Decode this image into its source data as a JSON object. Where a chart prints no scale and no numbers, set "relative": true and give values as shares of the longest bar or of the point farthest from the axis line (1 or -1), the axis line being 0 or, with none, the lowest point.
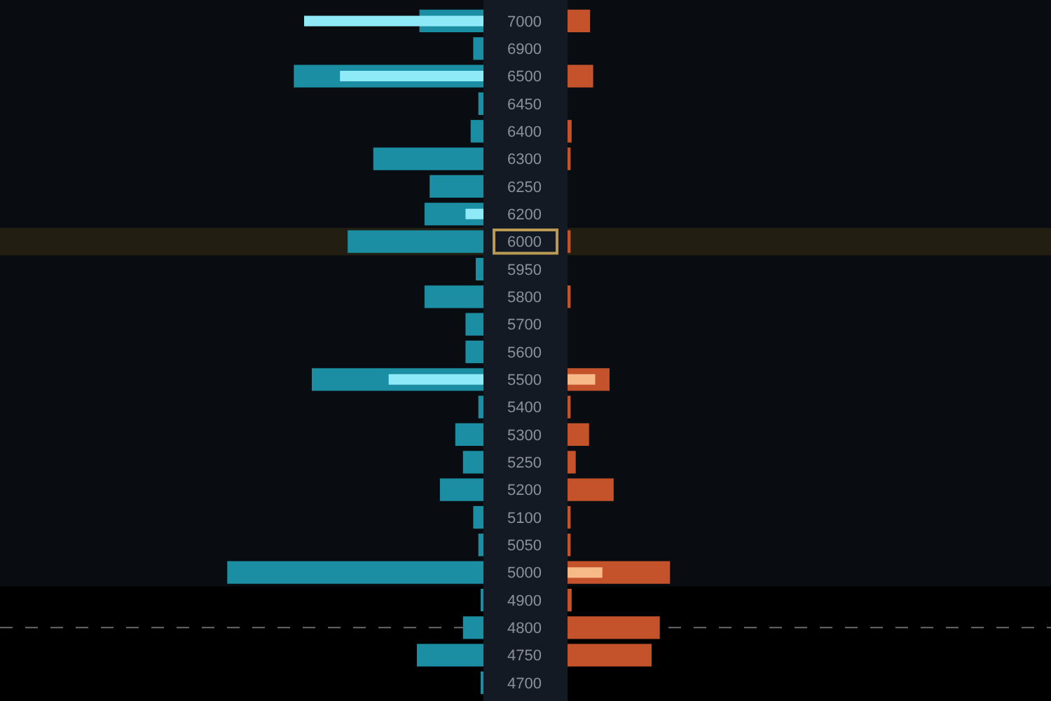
{
  "chart_data": [
    {
      "type": "bar",
      "orientation": "horizontal",
      "relative": true,
      "tick_labels": "y",
      "categories": [
        "7000",
        "6900",
        "6500",
        "6450",
        "6400",
        "6300",
        "6250",
        "6200",
        "6000",
        "5950",
        "5800",
        "5700",
        "5600",
        "5500",
        "5400",
        "5300",
        "5250",
        "5200",
        "5100",
        "5050",
        "5000",
        "4900",
        "4800",
        "4750",
        "4700"
      ],
      "series": [
        {
          "color": "#1b8ea3",
          "values": [
            -0.25,
            -0.04,
            -0.74,
            -0.02,
            -0.05,
            -0.43,
            -0.21,
            -0.23,
            -0.53,
            -0.03,
            -0.23,
            -0.07,
            -0.07,
            -0.67,
            -0.02,
            -0.11,
            -0.08,
            -0.17,
            -0.04,
            -0.02,
            -1,
            -0.01,
            -0.08,
            -0.26,
            -0.01
          ]
        },
        {
          "color": "#8eeaf6",
          "values": [
            -0.7,
            null,
            -0.56,
            null,
            null,
            null,
            null,
            -0.07,
            null,
            null,
            null,
            null,
            null,
            -0.37,
            null,
            null,
            null,
            null,
            null,
            null,
            null,
            null,
            null,
            null,
            null
          ]
        }
      ],
      "bands": [
        {
          "axis": "y",
          "from": "6000",
          "to": "6000",
          "color": "#221f12"
        },
        {
          "axis": "y",
          "from": "4900",
          "to": "4700",
          "color": "#000000"
        }
      ],
      "ref_lines": [
        {
          "axis": "y",
          "value": "4800",
          "color": "#6a6a6a",
          "line_style": "dashed"
        }
      ]
    },
    {
      "type": "bar",
      "orientation": "horizontal",
      "relative": true,
      "tick_labels": false,
      "categories": [
        "7000",
        "6900",
        "6500",
        "6450",
        "6400",
        "6300",
        "6250",
        "6200",
        "6000",
        "5950",
        "5800",
        "5700",
        "5600",
        "5500",
        "5400",
        "5300",
        "5250",
        "5200",
        "5100",
        "5050",
        "5000",
        "4900",
        "4800",
        "4750",
        "4700"
      ],
      "series": [
        {
          "color": "#c4532c",
          "values": [
            0.22,
            0,
            0.25,
            0,
            0.04,
            0.03,
            0,
            0,
            0.03,
            0,
            0.03,
            0,
            0,
            0.41,
            0.03,
            0.21,
            0.08,
            0.45,
            0.03,
            0.03,
            1,
            0.04,
            0.9,
            0.82,
            0
          ]
        },
        {
          "color": "#f7b987",
          "values": [
            null,
            null,
            null,
            null,
            null,
            null,
            null,
            null,
            null,
            null,
            null,
            null,
            null,
            0.27,
            null,
            null,
            null,
            null,
            null,
            null,
            0.34,
            null,
            null,
            null,
            null
          ]
        }
      ],
      "bands": [
        {
          "axis": "y",
          "from": "6000",
          "to": "6000",
          "color": "#221f12"
        },
        {
          "axis": "y",
          "from": "4900",
          "to": "4700",
          "color": "#000000"
        }
      ],
      "ref_lines": [
        {
          "axis": "y",
          "value": "4800",
          "color": "#6a6a6a",
          "line_style": "dashed"
        }
      ]
    }
  ]
}
